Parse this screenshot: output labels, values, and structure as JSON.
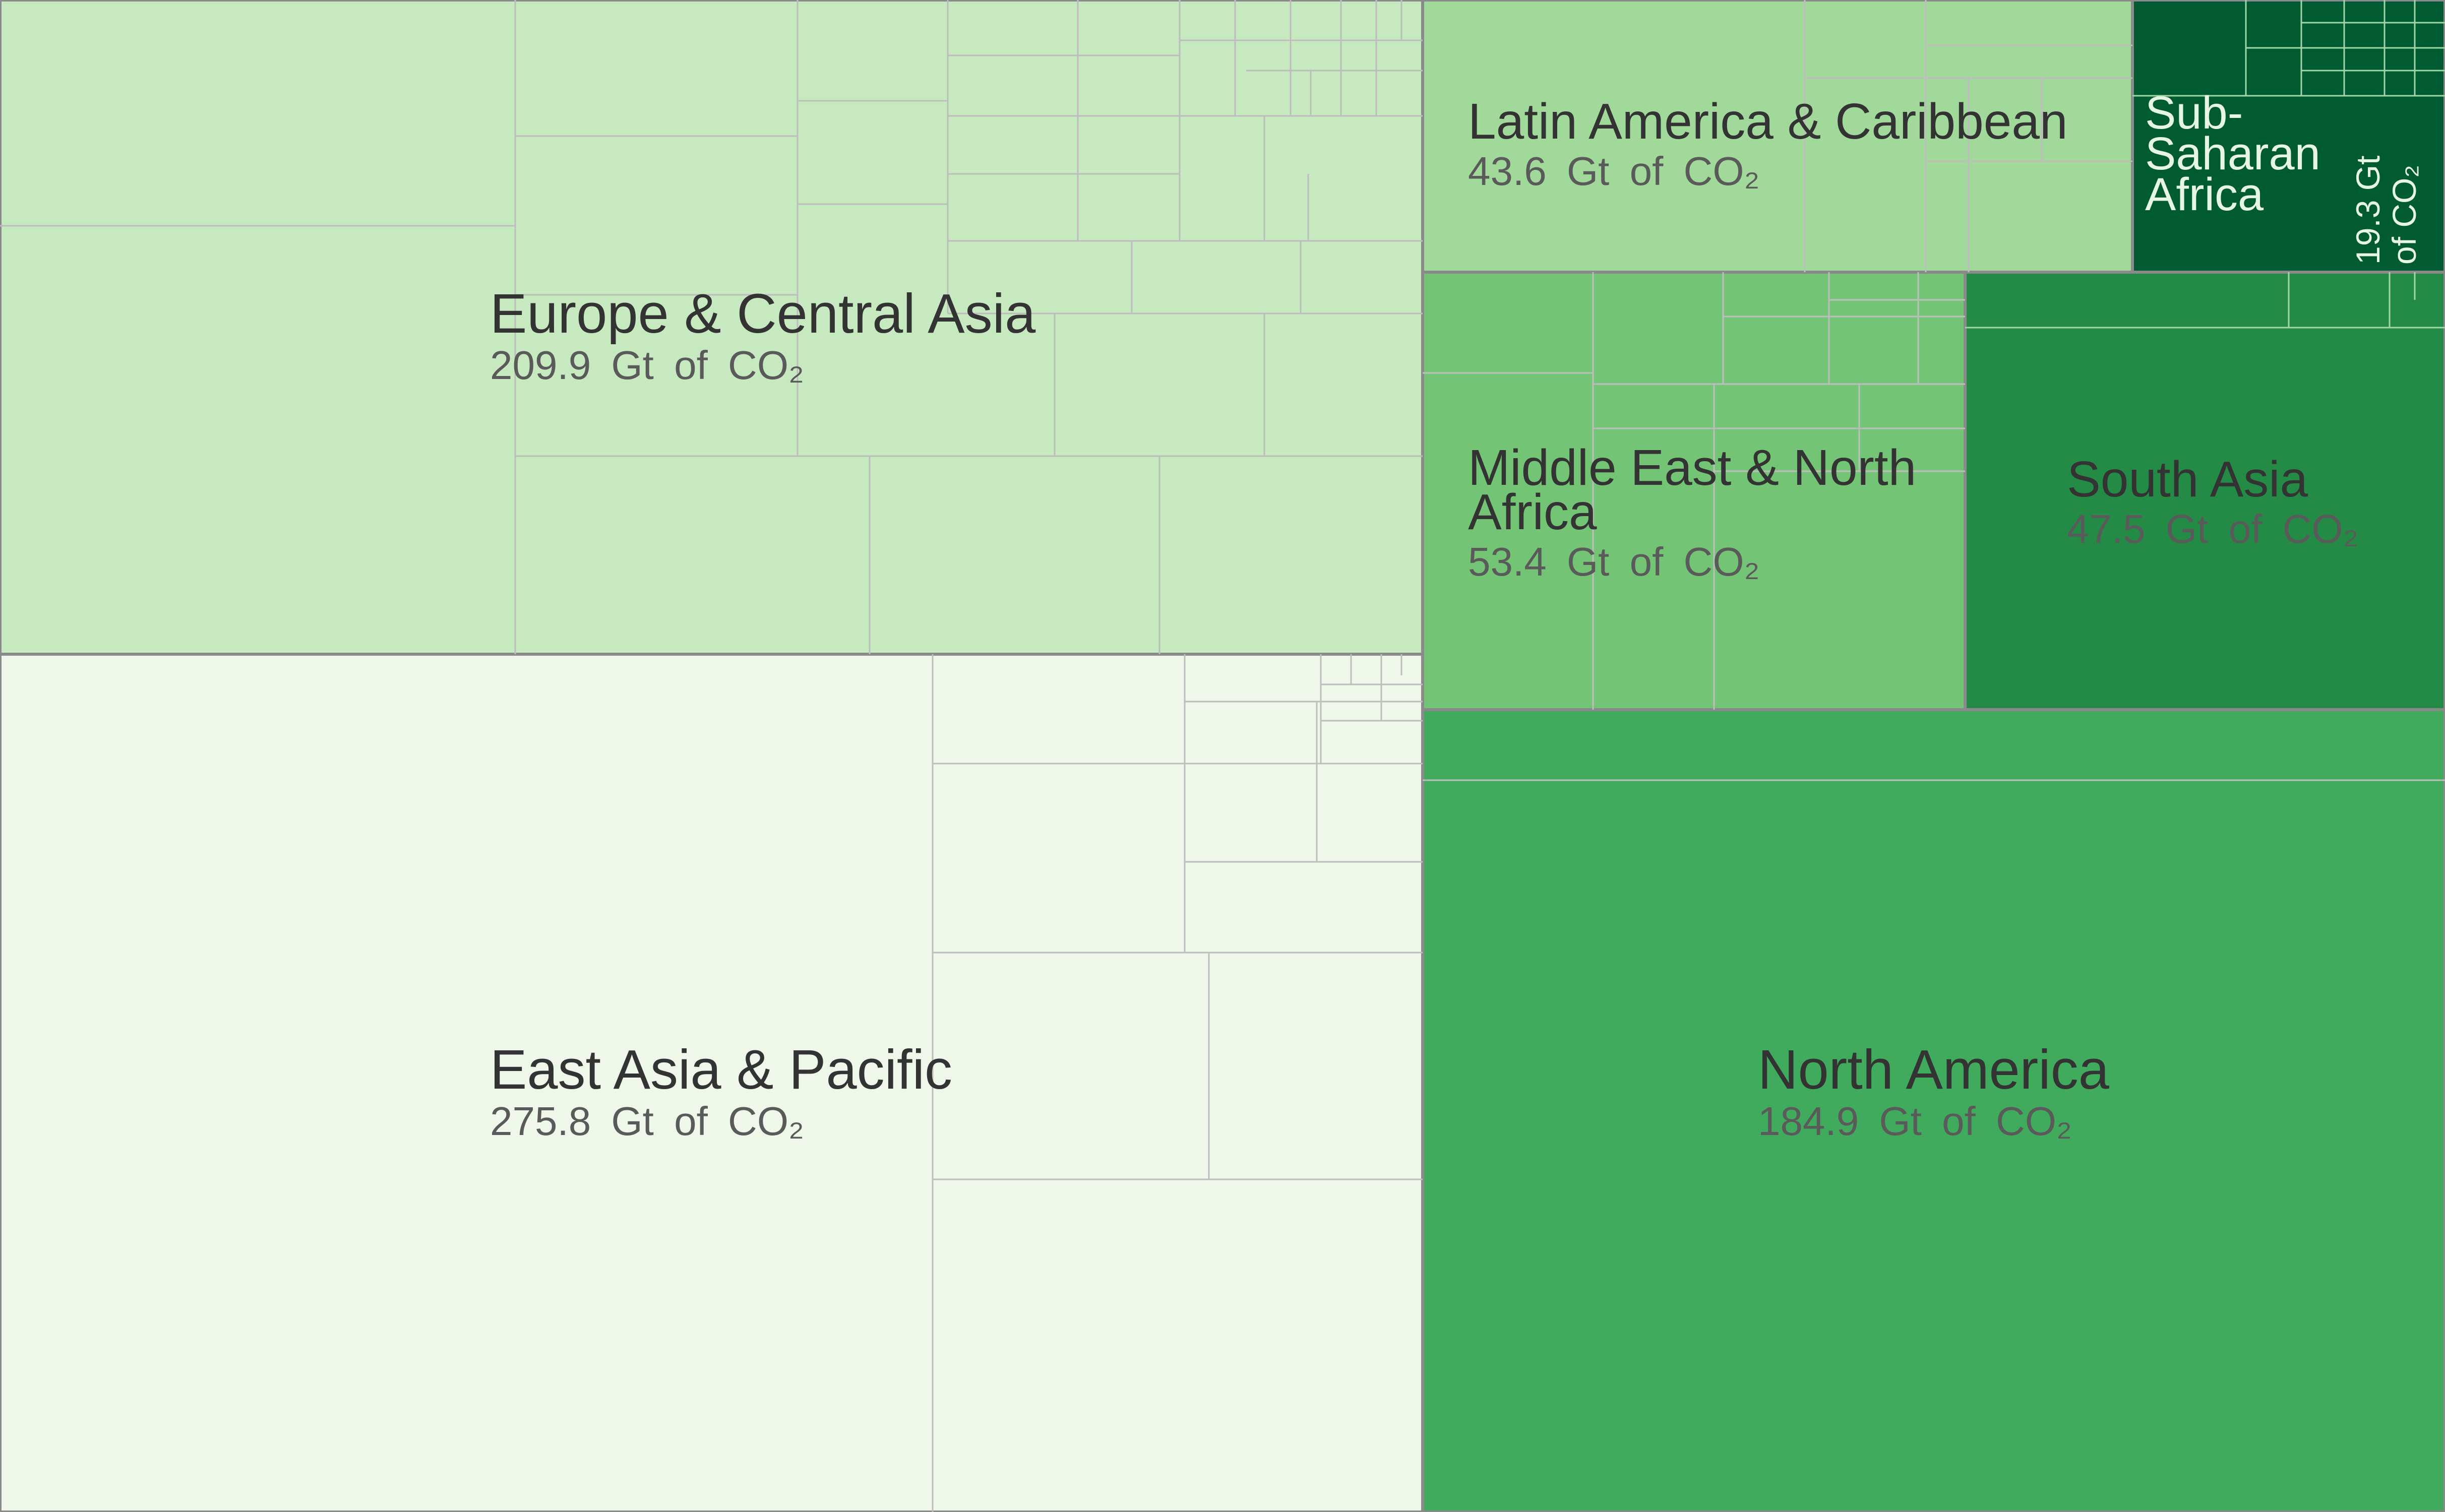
{
  "chart_data": {
    "type": "treemap",
    "unit": "Gt of CO2",
    "regions": [
      {
        "name": "East Asia & Pacific",
        "value": 275.8,
        "value_text": "275.8 Gt of CO₂",
        "color": "#eef7e9"
      },
      {
        "name": "Europe & Central Asia",
        "value": 209.9,
        "value_text": "209.9 Gt of CO₂",
        "color": "#c7e9c0"
      },
      {
        "name": "North America",
        "value": 184.9,
        "value_text": "184.9 Gt of CO₂",
        "color": "#41ab5d"
      },
      {
        "name": "Middle East & North Africa",
        "value": 53.4,
        "value_text": "53.4 Gt of CO₂",
        "color": "#74c476"
      },
      {
        "name": "South Asia",
        "value": 47.5,
        "value_text": "47.5 Gt of CO₂",
        "color": "#238b45"
      },
      {
        "name": "Latin America & Caribbean",
        "value": 43.6,
        "value_text": "43.6 Gt of CO₂",
        "color": "#a1d99b"
      },
      {
        "name": "Sub-Saharan Africa",
        "value": 19.3,
        "value_text": "19.3 Gt of CO₂",
        "color": "#005a32"
      }
    ]
  }
}
